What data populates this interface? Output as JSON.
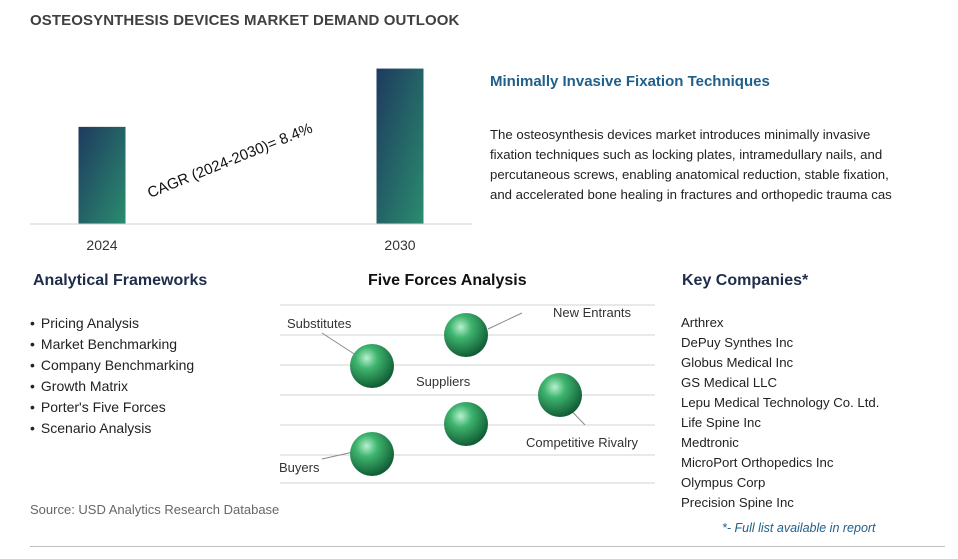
{
  "page": {
    "title": "OSTEOSYNTHESIS DEVICES MARKET DEMAND OUTLOOK",
    "source": "Source: USD Analytics Research Database"
  },
  "chart_data": {
    "type": "bar",
    "categories": [
      "2024",
      "2030"
    ],
    "values": [
      1,
      1.6
    ],
    "annotation": "CAGR (2024-2030)=  8.4%",
    "ylim": [
      0,
      1.75
    ],
    "grid": false,
    "colors": {
      "bar_top": "#1e3a5f",
      "bar_bottom": "#2a8c6e"
    }
  },
  "insight": {
    "title": "Minimally Invasive Fixation Techniques",
    "lines": [
      "The osteosynthesis devices market introduces minimally invasive",
      "fixation techniques such as locking plates, intramedullary nails, and",
      "percutaneous screws, enabling anatomical reduction, stable fixation,",
      "and accelerated bone healing in fractures and orthopedic trauma cas"
    ]
  },
  "frameworks": {
    "heading": "Analytical Frameworks",
    "items": [
      "Pricing Analysis",
      "Market Benchmarking",
      "Company Benchmarking",
      "Growth Matrix",
      "Porter's Five Forces",
      "Scenario Analysis"
    ]
  },
  "five_forces": {
    "heading": "Five Forces Analysis",
    "labels": {
      "substitutes": "Substitutes",
      "new_entrants": "New Entrants",
      "suppliers": "Suppliers",
      "competitive_rivalry": "Competitive Rivalry",
      "buyers": "Buyers"
    },
    "sphere_color": "#2e9e5e"
  },
  "companies": {
    "heading": "Key Companies*",
    "items": [
      "Arthrex",
      "DePuy Synthes Inc",
      "Globus Medical Inc",
      "GS Medical LLC",
      "Lepu Medical Technology Co. Ltd.",
      "Life Spine Inc",
      "Medtronic",
      "MicroPort Orthopedics Inc",
      "Olympus Corp",
      "Precision Spine Inc"
    ],
    "note": "*- Full list available in report"
  }
}
